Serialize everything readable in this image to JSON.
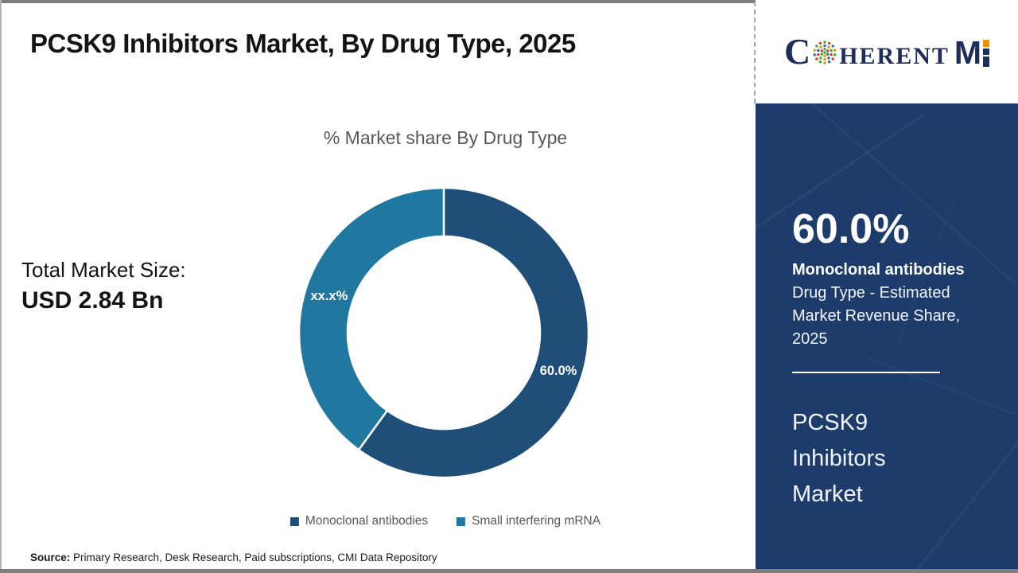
{
  "header": {
    "title": "PCSK9 Inhibitors Market, By Drug Type, 2025"
  },
  "logo": {
    "part_c": "C",
    "part_herent": "HERENT",
    "part_m": "M",
    "navy": "#1f2d5a",
    "orange": "#f39200"
  },
  "left_stats": {
    "label": "Total Market Size:",
    "value": "USD 2.84 Bn"
  },
  "chart_data": {
    "type": "pie",
    "donut": true,
    "title": "% Market share By Drug Type",
    "series": [
      {
        "name": "Monoclonal antibodies",
        "value": 60.0,
        "label": "60.0%",
        "color": "#1f4e79"
      },
      {
        "name": "Small interfering mRNA",
        "value": 40.0,
        "label": "xx.x%",
        "color": "#2077a0"
      }
    ],
    "start_angle_deg": 0,
    "direction": "clockwise",
    "inner_radius_ratio": 0.665,
    "legend_position": "bottom",
    "label_color": "#ffffff"
  },
  "right_panel": {
    "bg_color": "#1d3c6c",
    "stat_value": "60.0%",
    "stat_label": "Monoclonal antibodies",
    "stat_desc": "Drug Type - Estimated Market Revenue Share, 2025",
    "product": "PCSK9 Inhibitors Market"
  },
  "footer": {
    "source_label": "Source:",
    "source_text": " Primary Research, Desk Research, Paid subscriptions, CMI Data Repository"
  }
}
